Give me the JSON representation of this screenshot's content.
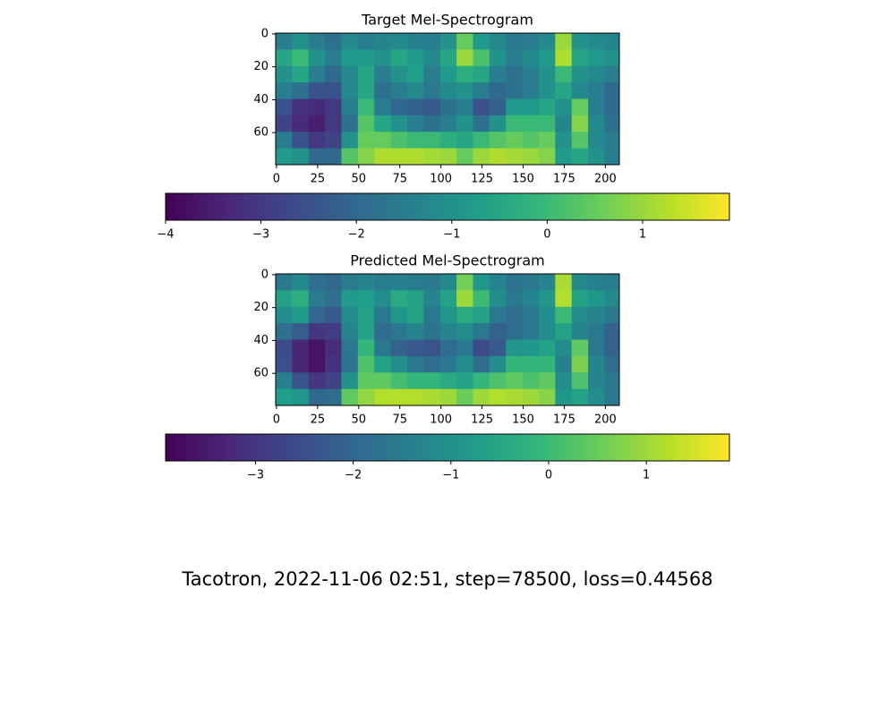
{
  "chart_data": [
    {
      "type": "heatmap",
      "title": "Target Mel-Spectrogram",
      "colormap": "viridis",
      "x": [
        0,
        10,
        20,
        30,
        40,
        50,
        60,
        70,
        80,
        90,
        100,
        110,
        120,
        130,
        140,
        150,
        160,
        170,
        180,
        190,
        200
      ],
      "y": [
        0,
        10,
        20,
        30,
        40,
        50,
        60,
        70
      ],
      "xlim": [
        -0.5,
        208.5
      ],
      "ylim": [
        79.5,
        -0.5
      ],
      "xticks": [
        0,
        25,
        50,
        75,
        100,
        125,
        150,
        175,
        200
      ],
      "yticks": [
        0,
        20,
        40,
        60
      ],
      "clim": [
        -4,
        1.91
      ],
      "cticks": [
        {
          "value": -4,
          "label": "−4"
        },
        {
          "value": -3,
          "label": "−3"
        },
        {
          "value": -2,
          "label": "−2"
        },
        {
          "value": -1,
          "label": "−1"
        },
        0,
        1
      ],
      "values": [
        [
          -1.5,
          -1,
          -1.5,
          -1.8,
          -1.2,
          -1.5,
          -1.3,
          -1.2,
          -1.4,
          -1.5,
          -1,
          0.5,
          -0.8,
          -1.2,
          -1.6,
          -1.5,
          -1.2,
          1,
          -1,
          -1.2,
          -1.3
        ],
        [
          -0.5,
          0,
          -1,
          -1.5,
          -0.8,
          -0.8,
          -1,
          -0.5,
          -0.8,
          -1.2,
          -0.5,
          1,
          0.2,
          -1,
          -1.5,
          -1.2,
          -0.8,
          1.2,
          -0.5,
          -0.8,
          -1
        ],
        [
          -1,
          -0.5,
          -1.5,
          -2,
          -1.2,
          -0.5,
          -1.5,
          -1,
          -0.7,
          -1.5,
          -0.8,
          -0.3,
          -0.5,
          -1.5,
          -1.8,
          -1.5,
          -1,
          0,
          -1,
          -1.2,
          -1.5
        ],
        [
          -1.5,
          -1.8,
          -2.5,
          -2.5,
          -1.2,
          -0.5,
          -1.8,
          -1.5,
          -1.2,
          -1.6,
          -1.2,
          -1,
          -1.5,
          -2,
          -1.8,
          -1.5,
          -1,
          -0.5,
          -1.2,
          -1.5,
          -2
        ],
        [
          -2.5,
          -3.2,
          -3.3,
          -3,
          -1.5,
          0,
          -1.5,
          -2,
          -2.2,
          -2.3,
          -1.8,
          -1.5,
          -2.5,
          -2.2,
          -0.8,
          -0.8,
          -0.5,
          -1,
          0.5,
          -1.5,
          -2
        ],
        [
          -2.8,
          -3.3,
          -3.5,
          -3,
          -1.8,
          0.3,
          -0.5,
          -1,
          -1.5,
          -1.8,
          -1.5,
          -1,
          -1.8,
          -1,
          0,
          0,
          0,
          -1.3,
          0.8,
          -1.2,
          -1.8
        ],
        [
          -1.5,
          -2.5,
          -3,
          -2.8,
          -1,
          0.5,
          0.5,
          0.2,
          0,
          0,
          -0.3,
          -0.5,
          0,
          0.3,
          0.5,
          0.3,
          0.5,
          -1,
          0.3,
          -1.2,
          -1.5
        ],
        [
          -0.8,
          -1,
          -2,
          -2,
          0.3,
          0.8,
          1.2,
          1.2,
          1.2,
          1.1,
          1,
          0.5,
          1,
          1.2,
          1.1,
          1,
          0.8,
          -0.8,
          -0.5,
          -1,
          -1.5
        ]
      ]
    },
    {
      "type": "heatmap",
      "title": "Predicted Mel-Spectrogram",
      "colormap": "viridis",
      "x": [
        0,
        10,
        20,
        30,
        40,
        50,
        60,
        70,
        80,
        90,
        100,
        110,
        120,
        130,
        140,
        150,
        160,
        170,
        180,
        190,
        200
      ],
      "y": [
        0,
        10,
        20,
        30,
        40,
        50,
        60,
        70
      ],
      "xlim": [
        -0.5,
        208.5
      ],
      "ylim": [
        79.5,
        -0.5
      ],
      "xticks": [
        0,
        25,
        50,
        75,
        100,
        125,
        150,
        175,
        200
      ],
      "yticks": [
        0,
        20,
        40,
        60
      ],
      "clim": [
        -3.92,
        1.85
      ],
      "cticks": [
        {
          "value": -3,
          "label": "−3"
        },
        {
          "value": -2,
          "label": "−2"
        },
        {
          "value": -1,
          "label": "−1"
        },
        0,
        1
      ],
      "values": [
        [
          -1.6,
          -1.2,
          -1.8,
          -2,
          -1.5,
          -1.3,
          -1.5,
          -1.4,
          -1.5,
          -1.6,
          -1.2,
          0.6,
          -0.9,
          -1.3,
          -1.7,
          -1.6,
          -1.3,
          1.1,
          -1.2,
          -1.4,
          -1.5
        ],
        [
          -0.6,
          -0.3,
          -1.5,
          -1.8,
          -0.8,
          -0.7,
          -1.1,
          -0.4,
          -0.6,
          -1.3,
          -0.6,
          1,
          0,
          -1.1,
          -1.6,
          -1.3,
          -0.9,
          1.2,
          -0.6,
          -0.9,
          -1.2
        ],
        [
          -1.1,
          -0.8,
          -2,
          -2.3,
          -1.1,
          -0.6,
          -1.6,
          -0.9,
          -0.6,
          -1.6,
          -0.9,
          -0.4,
          -0.6,
          -1.6,
          -1.9,
          -1.6,
          -1.1,
          0,
          -1.1,
          -1.3,
          -1.6
        ],
        [
          -1.8,
          -2.2,
          -3,
          -2.9,
          -1.3,
          -0.6,
          -1.9,
          -1.6,
          -1.3,
          -1.7,
          -1.3,
          -1.1,
          -1.6,
          -2.1,
          -1.9,
          -1.6,
          -1.1,
          -0.6,
          -1.3,
          -1.6,
          -2.1
        ],
        [
          -2.6,
          -3.3,
          -3.6,
          -3.2,
          -1.6,
          -0.1,
          -1.6,
          -2.1,
          -2.3,
          -2.4,
          -1.9,
          -1.6,
          -2.6,
          -2.3,
          -0.9,
          -0.9,
          -0.6,
          -1.1,
          0.4,
          -1.6,
          -2.1
        ],
        [
          -2.5,
          -3.3,
          -3.6,
          -3.1,
          -1.7,
          0.2,
          -0.6,
          -1.1,
          -1.6,
          -1.9,
          -1.6,
          -1.1,
          -1.9,
          -1.1,
          -0.1,
          -0.1,
          -0.1,
          -1.4,
          0.7,
          -1.3,
          -1.9
        ],
        [
          -1.4,
          -2.4,
          -3,
          -2.8,
          -1,
          0.4,
          0.4,
          0.1,
          -0.1,
          -0.1,
          -0.4,
          -0.6,
          -0.1,
          0.2,
          0.4,
          0.2,
          0.4,
          -1.1,
          0.2,
          -1.3,
          -1.6
        ],
        [
          -0.7,
          -0.9,
          -2,
          -1.9,
          0.4,
          0.9,
          1.2,
          1.2,
          1.2,
          1.1,
          1,
          0.5,
          1,
          1.2,
          1.1,
          1,
          0.8,
          -0.9,
          -0.6,
          -1.1,
          -1.6
        ]
      ]
    }
  ],
  "caption": "Tacotron, 2022-11-06 02:51, step=78500, loss=0.44568"
}
